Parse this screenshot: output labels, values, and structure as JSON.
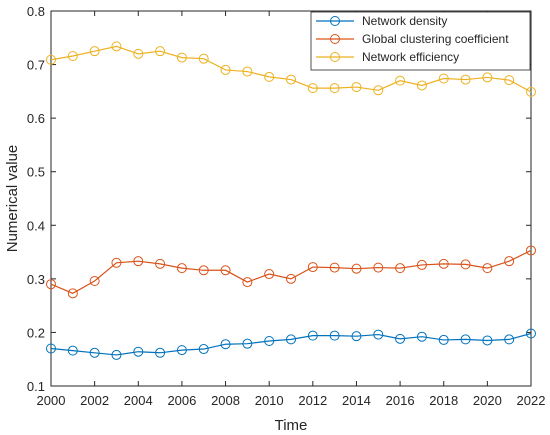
{
  "chart_data": {
    "type": "line",
    "xlabel": "Time",
    "ylabel": "Numerical value",
    "xlim": [
      2000,
      2022
    ],
    "ylim": [
      0.1,
      0.8
    ],
    "x_ticks": [
      "2000",
      "2002",
      "2004",
      "2006",
      "2008",
      "2010",
      "2012",
      "2014",
      "2016",
      "2018",
      "2020",
      "2022"
    ],
    "y_ticks": [
      "0.1",
      "0.2",
      "0.3",
      "0.4",
      "0.5",
      "0.6",
      "0.7",
      "0.8"
    ],
    "x": [
      2000,
      2001,
      2002,
      2003,
      2004,
      2005,
      2006,
      2007,
      2008,
      2009,
      2010,
      2011,
      2012,
      2013,
      2014,
      2015,
      2016,
      2017,
      2018,
      2019,
      2020,
      2021,
      2022
    ],
    "grid": false,
    "legend_position": "top-right",
    "marker": "circle",
    "series": [
      {
        "name": "Network density",
        "color": "#0072BD",
        "values": [
          0.17,
          0.166,
          0.162,
          0.158,
          0.164,
          0.162,
          0.167,
          0.169,
          0.178,
          0.179,
          0.184,
          0.187,
          0.194,
          0.194,
          0.193,
          0.196,
          0.188,
          0.192,
          0.186,
          0.187,
          0.185,
          0.187,
          0.198
        ]
      },
      {
        "name": "Global clustering coefficient",
        "color": "#D95319",
        "values": [
          0.29,
          0.273,
          0.296,
          0.33,
          0.333,
          0.328,
          0.32,
          0.316,
          0.316,
          0.294,
          0.309,
          0.3,
          0.322,
          0.321,
          0.319,
          0.321,
          0.32,
          0.326,
          0.328,
          0.327,
          0.32,
          0.333,
          0.353
        ]
      },
      {
        "name": "Network efficiency",
        "color": "#EDB120",
        "values": [
          0.709,
          0.716,
          0.725,
          0.734,
          0.72,
          0.725,
          0.713,
          0.711,
          0.69,
          0.687,
          0.677,
          0.672,
          0.656,
          0.656,
          0.658,
          0.652,
          0.67,
          0.661,
          0.674,
          0.672,
          0.676,
          0.671,
          0.649
        ]
      }
    ]
  }
}
